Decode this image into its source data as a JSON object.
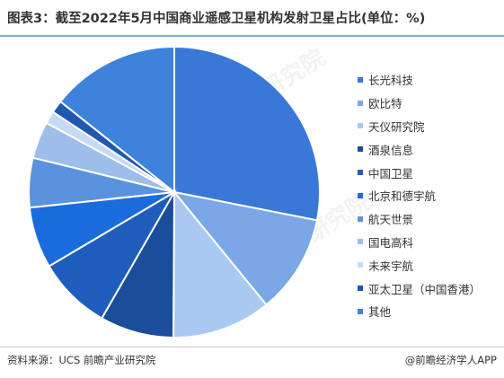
{
  "title": "图表3：截至2022年5月中国商业遥感卫星机构发射卫星占比(单位：%)",
  "source": "资料来源：UCS 前瞻产业研究院",
  "brand": "@前瞻经济学人APP",
  "watermark": "前瞻产业研究院",
  "chart_data": {
    "type": "pie",
    "title": "图表3：截至2022年5月中国商业遥感卫星机构发射卫星占比(单位：%)",
    "unit": "%",
    "legend_position": "right",
    "categories": [
      "长光科技",
      "欧比特",
      "天仪研究院",
      "酒泉信息",
      "中国卫星",
      "北京和德宇航",
      "航天世景",
      "国电高科",
      "未来宇航",
      "亚太卫星（中国香港）",
      "其他"
    ],
    "values": [
      28.1,
      11.0,
      11.0,
      8.2,
      8.2,
      6.8,
      5.5,
      4.1,
      1.4,
      1.4,
      14.3
    ],
    "colors": [
      "#3a78d8",
      "#7aa7e6",
      "#a9c9f2",
      "#1a4e9a",
      "#1f5dbd",
      "#1a6cdc",
      "#5b92dd",
      "#9dbdea",
      "#c6daf5",
      "#2057b0",
      "#3e82dc"
    ]
  }
}
